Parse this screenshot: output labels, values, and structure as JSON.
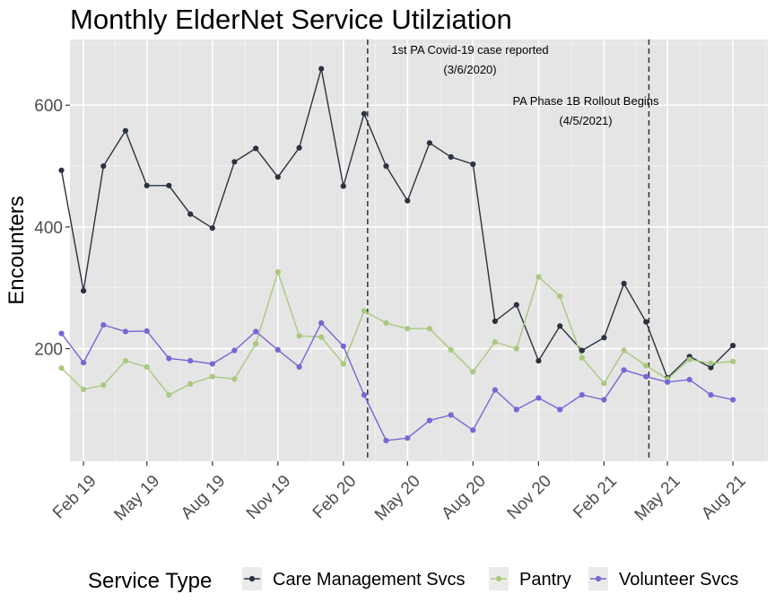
{
  "chart_data": {
    "type": "line",
    "title": "Monthly ElderNet Service Utilziation",
    "xlabel": "",
    "ylabel": "Encounters",
    "x_axis": {
      "type": "date",
      "range": [
        "2019-01-13",
        "2021-09-19"
      ],
      "ticks": [
        {
          "date": "2019-02-01",
          "label": "Feb 19"
        },
        {
          "date": "2019-05-01",
          "label": "May 19"
        },
        {
          "date": "2019-08-01",
          "label": "Aug 19"
        },
        {
          "date": "2019-11-01",
          "label": "Nov 19"
        },
        {
          "date": "2020-02-01",
          "label": "Feb 20"
        },
        {
          "date": "2020-05-01",
          "label": "May 20"
        },
        {
          "date": "2020-08-01",
          "label": "Aug 20"
        },
        {
          "date": "2020-11-01",
          "label": "Nov 20"
        },
        {
          "date": "2021-02-01",
          "label": "Feb 21"
        },
        {
          "date": "2021-05-01",
          "label": "May 21"
        },
        {
          "date": "2021-08-01",
          "label": "Aug 21"
        }
      ]
    },
    "y_axis": {
      "range": [
        15,
        708
      ],
      "ticks": [
        200,
        400,
        600
      ]
    },
    "grid": true,
    "background": "#e5e5e5",
    "x": [
      "2019-01-01",
      "2019-02-01",
      "2019-03-01",
      "2019-04-01",
      "2019-05-01",
      "2019-06-01",
      "2019-07-01",
      "2019-08-01",
      "2019-09-01",
      "2019-10-01",
      "2019-11-01",
      "2019-12-01",
      "2020-01-01",
      "2020-02-01",
      "2020-03-01",
      "2020-04-01",
      "2020-05-01",
      "2020-06-01",
      "2020-07-01",
      "2020-08-01",
      "2020-09-01",
      "2020-10-01",
      "2020-11-01",
      "2020-12-01",
      "2021-01-01",
      "2021-02-01",
      "2021-03-01",
      "2021-04-01",
      "2021-05-01",
      "2021-06-01",
      "2021-07-01",
      "2021-08-01"
    ],
    "series": [
      {
        "name": "Care Management Svcs",
        "color": "#2b323f",
        "values": [
          493,
          295,
          500,
          558,
          468,
          468,
          421,
          398,
          507,
          529,
          482,
          530,
          660,
          467,
          586,
          500,
          443,
          538,
          515,
          503,
          245,
          272,
          180,
          237,
          197,
          218,
          307,
          244,
          152,
          187,
          169,
          205
        ]
      },
      {
        "name": "Pantry",
        "color": "#a9c97e",
        "values": [
          168,
          133,
          140,
          180,
          170,
          124,
          142,
          154,
          150,
          208,
          326,
          221,
          219,
          175,
          262,
          242,
          233,
          233,
          198,
          162,
          211,
          200,
          318,
          286,
          185,
          143,
          197,
          172,
          150,
          182,
          176,
          179
        ]
      },
      {
        "name": "Volunteer Svcs",
        "color": "#7866d4",
        "values": [
          225,
          177,
          239,
          228,
          229,
          184,
          180,
          175,
          197,
          228,
          198,
          170,
          242,
          204,
          124,
          49,
          53,
          82,
          91,
          66,
          132,
          100,
          119,
          100,
          124,
          116,
          165,
          154,
          145,
          149,
          124,
          116
        ]
      }
    ],
    "annotations": [
      {
        "date": "2020-03-06",
        "line1": "1st PA Covid-19 case reported",
        "line2": "(3/6/2020)"
      },
      {
        "date": "2021-04-05",
        "line1": "PA Phase 1B Rollout Begins",
        "line2": "(4/5/2021)"
      }
    ],
    "legend": {
      "title": "Service Type",
      "placement": "bottom",
      "items": [
        "Care Management Svcs",
        "Pantry",
        "Volunteer Svcs"
      ]
    }
  }
}
